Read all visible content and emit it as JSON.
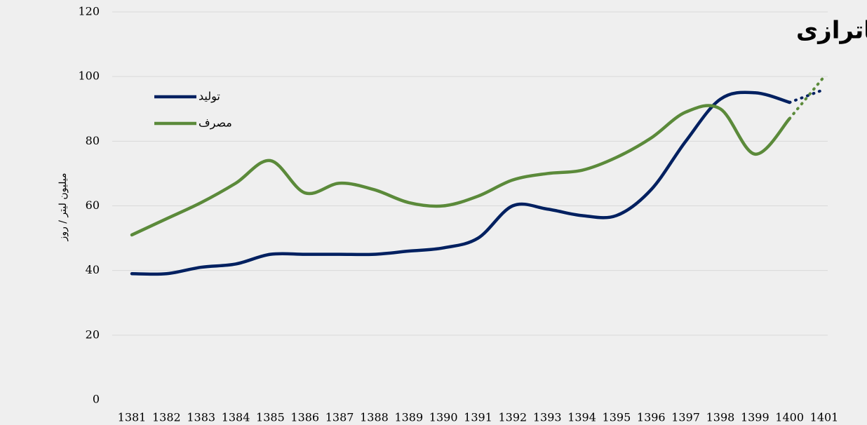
{
  "chart_data": {
    "type": "line",
    "title": "تولید و مصرف بنزین؛ ورود به ناترازی",
    "y_label": "میلیون لیتر / روز",
    "categories": [
      "1381",
      "1382",
      "1383",
      "1384",
      "1385",
      "1386",
      "1387",
      "1388",
      "1389",
      "1390",
      "1391",
      "1392",
      "1393",
      "1394",
      "1395",
      "1396",
      "1397",
      "1398",
      "1399",
      "1400",
      "1401"
    ],
    "series": [
      {
        "name": "تولید",
        "color": "#002060",
        "values": [
          39,
          39,
          41,
          42,
          45,
          45,
          45,
          45,
          46,
          47,
          50,
          60,
          59,
          57,
          57,
          65,
          80,
          93,
          95,
          92,
          96
        ]
      },
      {
        "name": "مصرف",
        "color": "#5b8a3a",
        "values": [
          51,
          56,
          61,
          67,
          74,
          64,
          67,
          65,
          61,
          60,
          63,
          68,
          70,
          71,
          75,
          81,
          89,
          90,
          76,
          87,
          100
        ]
      }
    ],
    "dotted_from": "1400",
    "ylim": [
      0,
      120
    ],
    "yticks": [
      0,
      20,
      40,
      60,
      80,
      100,
      120
    ],
    "grid": true,
    "smooth": true,
    "legend": "top-left"
  }
}
